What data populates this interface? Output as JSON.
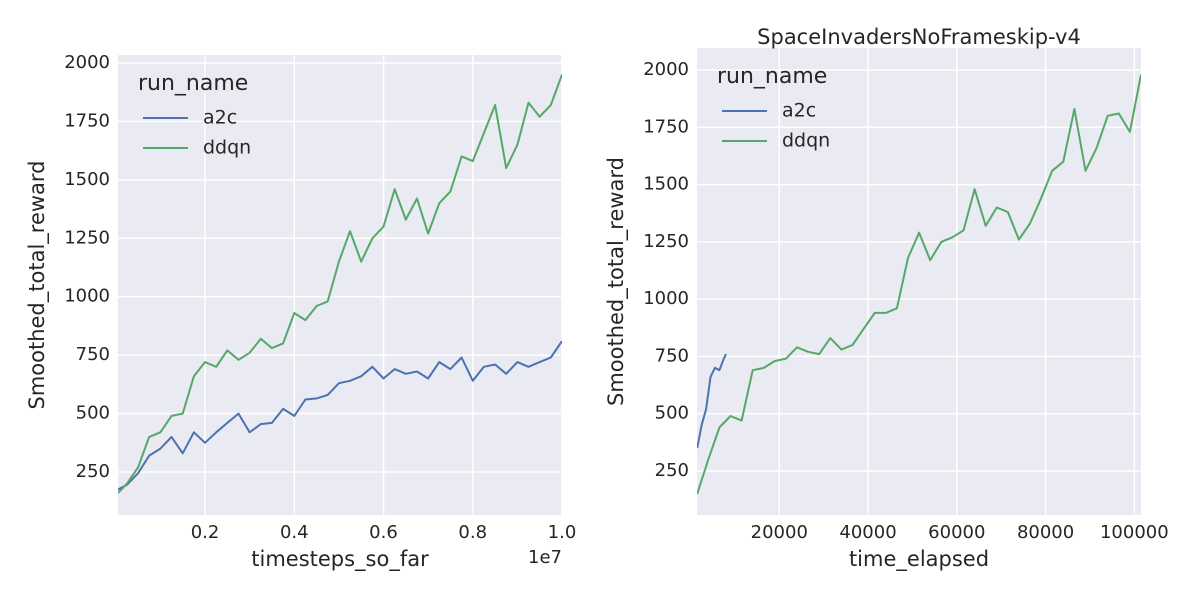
{
  "chart_data": [
    {
      "type": "line",
      "xlabel": "timesteps_so_far",
      "ylabel": "Smoothed_total_reward",
      "x_offset_label": "1e7",
      "legend_title": "run_name",
      "legend": "upper left",
      "grid": true,
      "xlim": [
        0.005,
        1.0
      ],
      "xticks": [
        0.2,
        0.4,
        0.6,
        0.8,
        {
          "value": 1,
          "label": "1.0"
        }
      ],
      "ylim": [
        66,
        2034
      ],
      "yticks": [
        250,
        500,
        750,
        1000,
        1250,
        1500,
        1750,
        2000
      ],
      "x": [
        0.005,
        0.025,
        0.05,
        0.075,
        0.1,
        0.125,
        0.15,
        0.175,
        0.2,
        0.225,
        0.25,
        0.275,
        0.3,
        0.325,
        0.35,
        0.375,
        0.4,
        0.425,
        0.45,
        0.475,
        0.5,
        0.525,
        0.55,
        0.575,
        0.6,
        0.625,
        0.65,
        0.675,
        0.7,
        0.725,
        0.75,
        0.775,
        0.8,
        0.825,
        0.85,
        0.875,
        0.9,
        0.925,
        0.95,
        0.975,
        1.0
      ],
      "series": [
        {
          "name": "a2c",
          "color": "#4c72b0",
          "values": [
            175,
            195,
            245,
            320,
            350,
            400,
            330,
            420,
            375,
            420,
            460,
            500,
            420,
            455,
            460,
            520,
            490,
            560,
            565,
            580,
            630,
            640,
            660,
            700,
            650,
            690,
            670,
            680,
            650,
            720,
            690,
            740,
            640,
            700,
            710,
            670,
            720,
            700,
            720,
            740,
            810
          ]
        },
        {
          "name": "ddqn",
          "color": "#55a868",
          "values": [
            160,
            200,
            270,
            400,
            420,
            490,
            500,
            660,
            720,
            700,
            770,
            730,
            760,
            820,
            780,
            800,
            930,
            900,
            960,
            980,
            1150,
            1280,
            1150,
            1250,
            1300,
            1460,
            1330,
            1420,
            1270,
            1400,
            1450,
            1600,
            1580,
            1700,
            1820,
            1550,
            1650,
            1830,
            1770,
            1820,
            1950
          ]
        }
      ]
    },
    {
      "type": "line",
      "title": "SpaceInvadersNoFrameskip-v4",
      "xlabel": "time_elapsed",
      "ylabel": "Smoothed_total_reward",
      "legend_title": "run_name",
      "legend": "upper left",
      "grid": true,
      "xlim": [
        1460,
        101500
      ],
      "xticks": [
        20000,
        40000,
        60000,
        80000,
        100000
      ],
      "ylim": [
        58,
        2096
      ],
      "yticks": [
        250,
        500,
        750,
        1000,
        1250,
        1500,
        1750,
        2000
      ],
      "series": [
        {
          "name": "a2c",
          "color": "#4c72b0",
          "x": [
            1500,
            2500,
            3500,
            4500,
            5500,
            6500,
            7500,
            8000
          ],
          "values": [
            350,
            450,
            520,
            660,
            700,
            690,
            740,
            760
          ]
        },
        {
          "name": "ddqn",
          "color": "#55a868",
          "x": [
            1500,
            4000,
            6500,
            9000,
            11500,
            14000,
            16500,
            19000,
            21500,
            24000,
            26500,
            29000,
            31500,
            34000,
            36500,
            39000,
            41500,
            44000,
            46500,
            49000,
            51500,
            54000,
            56500,
            59000,
            61500,
            64000,
            66500,
            69000,
            71500,
            74000,
            76500,
            79000,
            81500,
            84000,
            86500,
            89000,
            91500,
            94000,
            96500,
            99000,
            101500
          ],
          "values": [
            150,
            300,
            440,
            490,
            470,
            690,
            700,
            730,
            740,
            790,
            770,
            760,
            830,
            780,
            800,
            870,
            940,
            940,
            960,
            1180,
            1290,
            1170,
            1250,
            1270,
            1300,
            1480,
            1320,
            1400,
            1380,
            1260,
            1330,
            1440,
            1560,
            1600,
            1830,
            1560,
            1660,
            1800,
            1810,
            1730,
            1980
          ]
        }
      ]
    }
  ]
}
